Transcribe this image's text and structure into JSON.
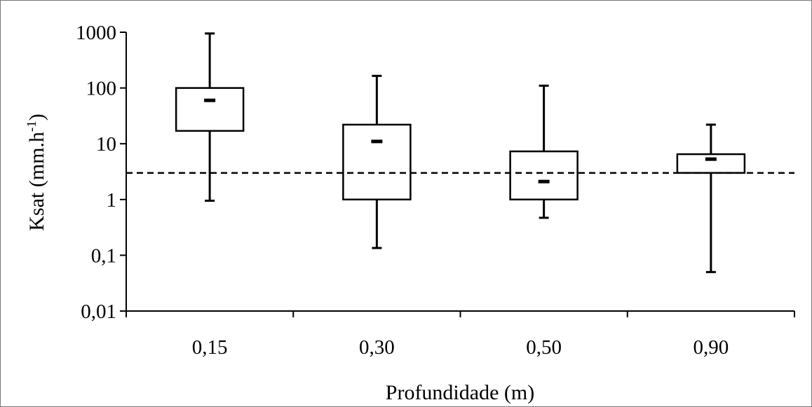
{
  "chart_data": {
    "type": "boxplot",
    "xlabel": "Profundidade (m)",
    "ylabel_main": "Ksat (mm.h",
    "ylabel_sup": "-1",
    "ylabel_close": ")",
    "yscale": "log",
    "ylim": [
      0.01,
      1000
    ],
    "yticks": [
      {
        "value": 1000,
        "label": "1000"
      },
      {
        "value": 100,
        "label": "100"
      },
      {
        "value": 10,
        "label": "10"
      },
      {
        "value": 1,
        "label": "1"
      },
      {
        "value": 0.1,
        "label": "0,1"
      },
      {
        "value": 0.01,
        "label": "0,01"
      }
    ],
    "categories": [
      "0,15",
      "0,30",
      "0,50",
      "0,90"
    ],
    "boxes": [
      {
        "category": "0,15",
        "min": 0.95,
        "q1": 17,
        "median": 60,
        "q3": 100,
        "max": 950
      },
      {
        "category": "0,30",
        "min": 0.135,
        "q1": 1.0,
        "median": 11,
        "q3": 22,
        "max": 165
      },
      {
        "category": "0,50",
        "min": 0.47,
        "q1": 1.0,
        "median": 2.1,
        "q3": 7.3,
        "max": 110
      },
      {
        "category": "0,90",
        "min": 0.05,
        "q1": 3.0,
        "median": 5.3,
        "q3": 6.5,
        "max": 22
      }
    ],
    "reference_line": {
      "value": 3.0,
      "style": "dashed"
    },
    "grid": false,
    "legend": "none"
  }
}
